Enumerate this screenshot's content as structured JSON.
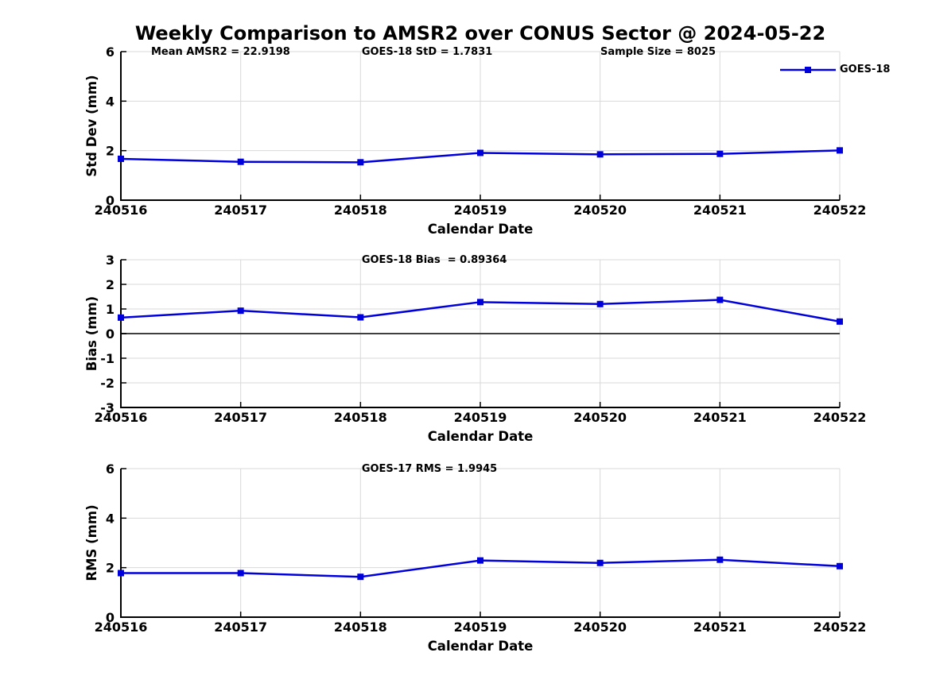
{
  "title": "Weekly Comparison to AMSR2 over CONUS Sector @ 2024-05-22",
  "legend": {
    "label": "GOES-18",
    "position": "top-right-outside"
  },
  "colors": {
    "line": "#0000dd",
    "grid": "#d9d9d9",
    "zero_line": "#3f3f3f",
    "axis": "#000000",
    "text": "#000000",
    "background": "#ffffff"
  },
  "chart_data": [
    {
      "type": "line",
      "panel": "std-dev",
      "title_annotations": [
        {
          "text": "Mean AMSR2 = 22.9198",
          "xfrac": 0.042
        },
        {
          "text": "GOES-18 StD = 1.7831",
          "xfrac": 0.335
        },
        {
          "text": "Sample Size = 8025",
          "xfrac": 0.667
        }
      ],
      "xlabel": "Calendar Date",
      "ylabel": "Std Dev (mm)",
      "categories": [
        "240516",
        "240517",
        "240518",
        "240519",
        "240520",
        "240521",
        "240522"
      ],
      "series": [
        {
          "name": "GOES-18",
          "values": [
            1.67,
            1.55,
            1.53,
            1.91,
            1.85,
            1.87,
            2.01
          ]
        }
      ],
      "ylim": [
        0,
        6
      ],
      "yticks": [
        0,
        2,
        4,
        6
      ],
      "grid": true,
      "zero_line": false,
      "legend_entry": "GOES-18"
    },
    {
      "type": "line",
      "panel": "bias",
      "title_annotations": [
        {
          "text": "GOES-18 Bias  = 0.89364",
          "xfrac": 0.335
        }
      ],
      "xlabel": "Calendar Date",
      "ylabel": "Bias (mm)",
      "categories": [
        "240516",
        "240517",
        "240518",
        "240519",
        "240520",
        "240521",
        "240522"
      ],
      "series": [
        {
          "name": "GOES-18",
          "values": [
            0.65,
            0.93,
            0.66,
            1.28,
            1.2,
            1.37,
            0.49
          ]
        }
      ],
      "ylim": [
        -3,
        3
      ],
      "yticks": [
        -3,
        -2,
        -1,
        0,
        1,
        2,
        3
      ],
      "grid": true,
      "zero_line": true
    },
    {
      "type": "line",
      "panel": "rms",
      "title_annotations": [
        {
          "text": "GOES-17 RMS = 1.9945",
          "xfrac": 0.335
        }
      ],
      "xlabel": "Calendar Date",
      "ylabel": "RMS (mm)",
      "categories": [
        "240516",
        "240517",
        "240518",
        "240519",
        "240520",
        "240521",
        "240522"
      ],
      "series": [
        {
          "name": "GOES-18",
          "values": [
            1.78,
            1.78,
            1.63,
            2.29,
            2.19,
            2.32,
            2.06
          ]
        }
      ],
      "ylim": [
        0,
        6
      ],
      "yticks": [
        0,
        2,
        4,
        6
      ],
      "grid": true,
      "zero_line": false
    }
  ]
}
